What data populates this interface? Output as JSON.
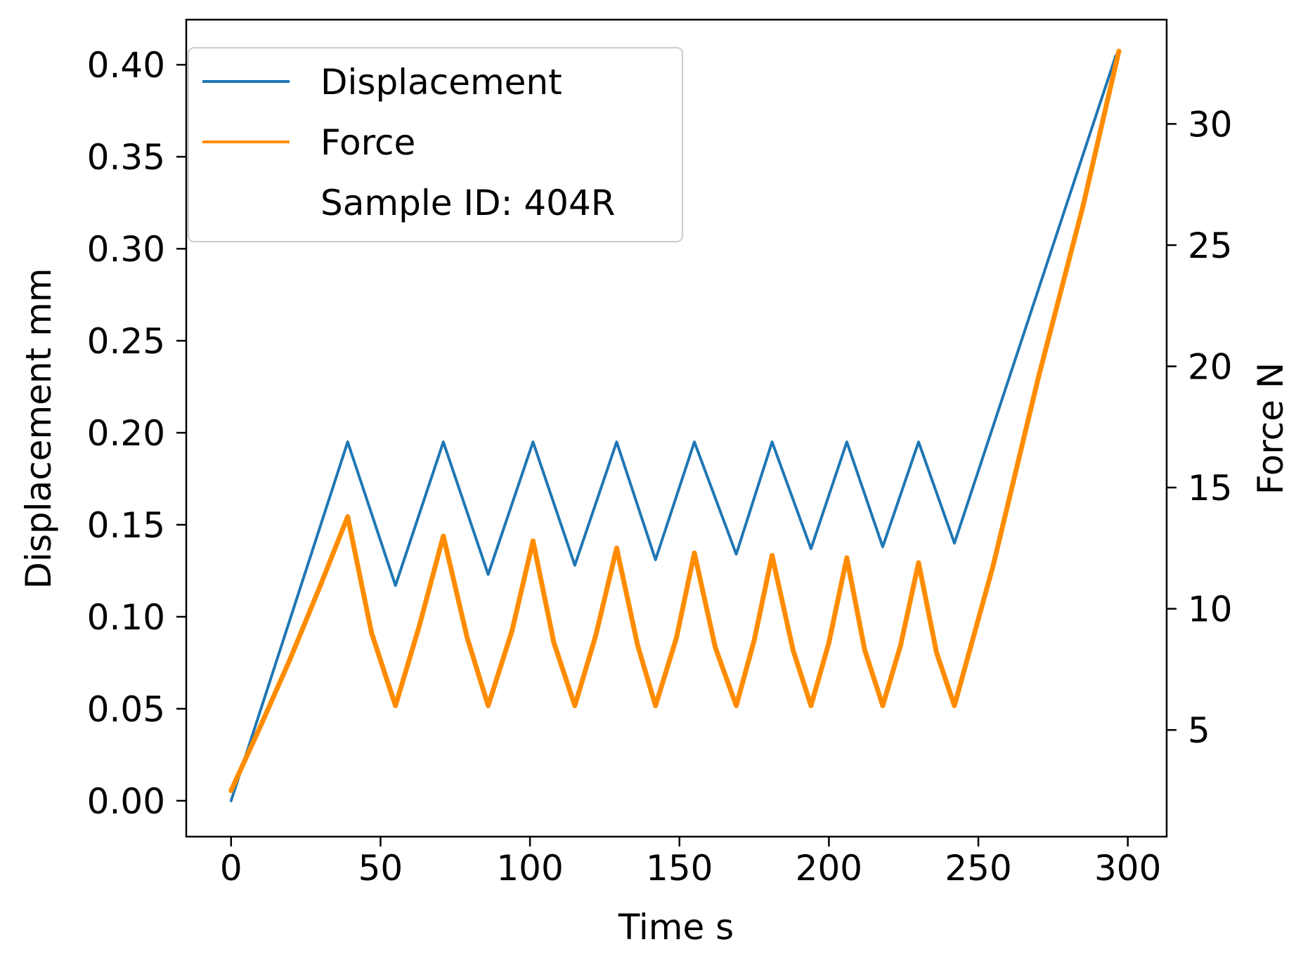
{
  "chart_data": {
    "type": "line",
    "title": "",
    "xlabel": "Time s",
    "ylabel": "Displacement mm",
    "y2label": "Force N",
    "xlim": [
      -15,
      313
    ],
    "ylim": [
      -0.0195,
      0.4245
    ],
    "y2lim": [
      0.6,
      34.3
    ],
    "xticks": [
      0,
      50,
      100,
      150,
      200,
      250,
      300
    ],
    "yticks": [
      0.0,
      0.05,
      0.1,
      0.15,
      0.2,
      0.25,
      0.3,
      0.35,
      0.4
    ],
    "ytick_labels": [
      "0.00",
      "0.05",
      "0.10",
      "0.15",
      "0.20",
      "0.25",
      "0.30",
      "0.35",
      "0.40"
    ],
    "y2ticks": [
      5,
      10,
      15,
      20,
      25,
      30
    ],
    "grid": false,
    "legend": {
      "position": "top-left",
      "entries": [
        {
          "label": "Displacement",
          "color": "#1f77b4"
        },
        {
          "label": "Force",
          "color": "#ff8c00"
        },
        {
          "label": "Sample ID: 404R",
          "color": null
        }
      ]
    },
    "series": [
      {
        "name": "Displacement",
        "axis": "left",
        "color": "#1f77b4",
        "x": [
          0,
          39,
          55,
          71,
          86,
          101,
          115,
          129,
          142,
          155,
          169,
          181,
          194,
          206,
          218,
          230,
          242,
          296
        ],
        "y": [
          0.0,
          0.195,
          0.117,
          0.195,
          0.123,
          0.195,
          0.128,
          0.195,
          0.131,
          0.195,
          0.134,
          0.195,
          0.137,
          0.195,
          0.138,
          0.195,
          0.14,
          0.405
        ]
      },
      {
        "name": "Force",
        "axis": "right",
        "color": "#ff8c00",
        "x": [
          0,
          10,
          20,
          30,
          39,
          47,
          55,
          63,
          71,
          79,
          86,
          94,
          101,
          108,
          115,
          122,
          129,
          136,
          142,
          149,
          155,
          162,
          169,
          175,
          181,
          188,
          194,
          200,
          206,
          212,
          218,
          224,
          230,
          236,
          242,
          255,
          270,
          285,
          297
        ],
        "y": [
          2.5,
          5.2,
          8.0,
          11.0,
          13.8,
          9.0,
          6.0,
          9.3,
          13.0,
          8.8,
          6.0,
          9.1,
          12.8,
          8.6,
          6.0,
          8.9,
          12.5,
          8.5,
          6.0,
          8.8,
          12.3,
          8.4,
          6.0,
          8.7,
          12.2,
          8.3,
          6.0,
          8.6,
          12.1,
          8.3,
          6.0,
          8.5,
          11.9,
          8.2,
          6.0,
          11.8,
          19.5,
          26.6,
          33.0
        ]
      }
    ]
  }
}
